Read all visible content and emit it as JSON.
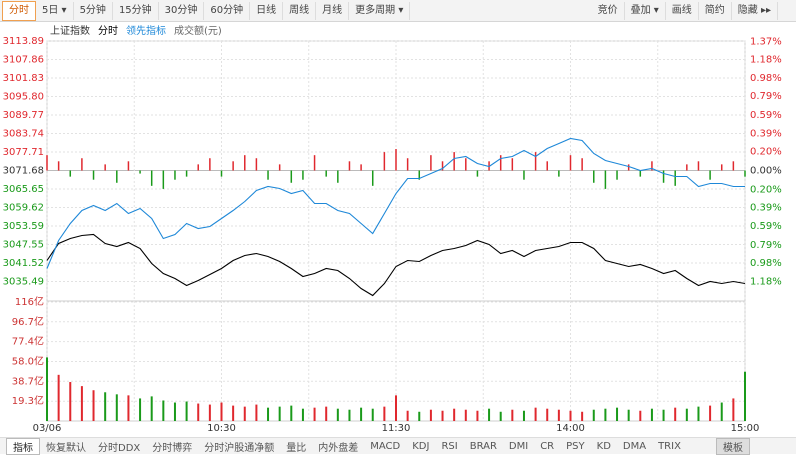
{
  "toolbar": {
    "left": [
      "分时",
      "5日 ▾",
      "5分钟",
      "15分钟",
      "30分钟",
      "60分钟",
      "日线",
      "周线",
      "月线",
      "更多周期 ▾"
    ],
    "right": [
      "竞价",
      "叠加 ▾",
      "画线",
      "简约",
      "隐藏 ▸▸"
    ]
  },
  "chart_data": {
    "type": "line",
    "period_label": "分时",
    "x": [
      0,
      4,
      8,
      12,
      16,
      20,
      24,
      28,
      32,
      36,
      40,
      44,
      48,
      52,
      56,
      60,
      64,
      68,
      72,
      76,
      80,
      84,
      88,
      92,
      96,
      100,
      104,
      108,
      112,
      116,
      120,
      124,
      128,
      132,
      136,
      140,
      144,
      148,
      152,
      156,
      160,
      164,
      168,
      172,
      176,
      180,
      184,
      188,
      192,
      196,
      200,
      204,
      208,
      212,
      216,
      220,
      224,
      228,
      232,
      236,
      240
    ],
    "xlim": [
      0,
      240
    ],
    "xticks": [
      {
        "value": 0,
        "label": "03/06"
      },
      {
        "value": 30,
        "label": null
      },
      {
        "value": 60,
        "label": "10:30"
      },
      {
        "value": 90,
        "label": null
      },
      {
        "value": 120,
        "label": "11:30"
      },
      {
        "value": 150,
        "label": null
      },
      {
        "value": 180,
        "label": "14:00"
      },
      {
        "value": 210,
        "label": null
      },
      {
        "value": 240,
        "label": "15:00"
      }
    ],
    "ylim": [
      3029.47,
      3113.89
    ],
    "yticks": [
      3113.89,
      3107.86,
      3101.83,
      {
        "value": 3095.8,
        "label": "3095.80"
      },
      3089.77,
      3083.74,
      3077.71,
      3071.68,
      3065.65,
      3059.62,
      3053.59,
      3047.55,
      3041.52,
      3035.49
    ],
    "y2lim": [
      -1.374,
      1.374
    ],
    "y2ticks": [
      {
        "value": 1.37,
        "label": "1.37%"
      },
      {
        "value": 1.18,
        "label": "1.18%"
      },
      {
        "value": 0.98,
        "label": "0.98%"
      },
      {
        "value": 0.79,
        "label": "0.79%"
      },
      {
        "value": 0.59,
        "label": "0.59%"
      },
      {
        "value": 0.39,
        "label": "0.39%"
      },
      {
        "value": 0.2,
        "label": "0.20%"
      },
      {
        "value": 0,
        "label": "0.00%"
      },
      {
        "value": -0.2,
        "label": "0.20%"
      },
      {
        "value": -0.39,
        "label": "0.39%"
      },
      {
        "value": -0.59,
        "label": "0.59%"
      },
      {
        "value": -0.79,
        "label": "0.79%"
      },
      {
        "value": -0.98,
        "label": "0.98%"
      },
      {
        "value": -1.18,
        "label": "1.18%"
      }
    ],
    "up_color": "#e0282e",
    "down_color": "#1a9a1a",
    "grid": true,
    "series": [
      {
        "name": "上证指数",
        "color": "#000000",
        "values": [
          3042.34,
          3047.88,
          3049.51,
          3050.49,
          3050.82,
          3047.88,
          3046.9,
          3048.21,
          3046.25,
          3041.36,
          3038.1,
          3036.47,
          3034.19,
          3035.82,
          3037.78,
          3039.73,
          3042.34,
          3043.97,
          3044.62,
          3043.64,
          3042.01,
          3039.73,
          3037.12,
          3038.1,
          3039.73,
          3039.08,
          3036.47,
          3033.21,
          3030.93,
          3034.84,
          3040.38,
          3042.34,
          3042.01,
          3043.97,
          3045.6,
          3046.25,
          3047.23,
          3048.86,
          3047.56,
          3044.62,
          3045.6,
          3043.64,
          3045.6,
          3046.25,
          3046.9,
          3048.21,
          3048.21,
          3046.25,
          3042.34,
          3041.36,
          3040.38,
          3041.04,
          3039.73,
          3038.1,
          3039.08,
          3036.47,
          3034.19,
          3035.49,
          3034.84,
          3035.49,
          3034.84
        ]
      },
      {
        "name": "领先指标",
        "color": "#1e88d8",
        "values": [
          3039.73,
          3048.86,
          3054.4,
          3058.64,
          3060.27,
          3058.64,
          3060.92,
          3057.66,
          3059.29,
          3056.03,
          3049.51,
          3050.82,
          3054.4,
          3052.77,
          3053.42,
          3056.03,
          3058.64,
          3061.57,
          3065.16,
          3066.46,
          3065.81,
          3064.18,
          3065.16,
          3060.92,
          3060.92,
          3058.64,
          3057.66,
          3054.4,
          3051.14,
          3057.66,
          3064.18,
          3069.07,
          3069.07,
          3070.7,
          3072.33,
          3075.59,
          3076.24,
          3073.96,
          3072.98,
          3075.59,
          3076.24,
          3078.2,
          3076.24,
          3078.85,
          3080.48,
          3082.11,
          3081.46,
          3077.22,
          3074.94,
          3073.96,
          3072.98,
          3071.68,
          3072.33,
          3070.7,
          3069.72,
          3069.72,
          3066.46,
          3067.44,
          3067.44,
          3066.46,
          3066.46
        ]
      }
    ],
    "strength": {
      "values": [
        5,
        3,
        -2,
        4,
        -3,
        2,
        -4,
        3,
        -1,
        -5,
        -6,
        -3,
        -2,
        2,
        4,
        -2,
        3,
        5,
        4,
        -3,
        2,
        -4,
        -3,
        5,
        -2,
        -4,
        3,
        2,
        -5,
        6,
        7,
        4,
        -3,
        5,
        3,
        6,
        4,
        -2,
        3,
        5,
        4,
        -3,
        6,
        3,
        -2,
        5,
        4,
        -4,
        -6,
        -3,
        2,
        -2,
        3,
        -4,
        -5,
        2,
        3,
        -3,
        2,
        3,
        -2
      ]
    },
    "volume": {
      "title": "成交额(元)",
      "ylim": [
        0,
        116
      ],
      "yticks": [
        {
          "value": 116,
          "label": "116亿"
        },
        {
          "value": 96.7,
          "label": "96.7亿"
        },
        {
          "value": 77.4,
          "label": "77.4亿"
        },
        {
          "value": 58.0,
          "label": "58.0亿"
        },
        {
          "value": 38.7,
          "label": "38.7亿"
        },
        {
          "value": 19.3,
          "label": "19.3亿"
        }
      ],
      "values": [
        62,
        45,
        38,
        34,
        30,
        28,
        26,
        25,
        22,
        24,
        20,
        18,
        19,
        17,
        16,
        18,
        15,
        14,
        16,
        13,
        14,
        15,
        12,
        13,
        14,
        12,
        11,
        13,
        12,
        14,
        25,
        10,
        9,
        11,
        10,
        12,
        11,
        10,
        12,
        9,
        11,
        10,
        13,
        12,
        11,
        10,
        9,
        11,
        12,
        13,
        11,
        10,
        12,
        11,
        13,
        12,
        14,
        15,
        18,
        22,
        48
      ]
    }
  },
  "bottom_bar": [
    "指标",
    "恢复默认",
    "分时DDX",
    "分时博弈",
    "分时沪股通净额",
    "量比",
    "内外盘差",
    "MACD",
    "KDJ",
    "RSI",
    "BRAR",
    "DMI",
    "CR",
    "PSY",
    "KD",
    "DMA",
    "TRIX",
    "模板"
  ]
}
